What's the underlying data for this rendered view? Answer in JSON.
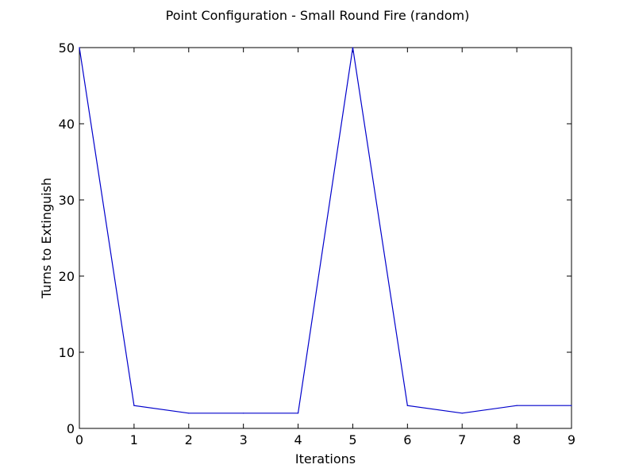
{
  "chart_data": {
    "type": "line",
    "title": "Point Configuration - Small Round Fire (random)",
    "xlabel": "Iterations",
    "ylabel": "Turns to Extinguish",
    "x": [
      0,
      1,
      2,
      3,
      4,
      5,
      6,
      7,
      8,
      9
    ],
    "series": [
      {
        "values": [
          50,
          3,
          2,
          2,
          2,
          50,
          3,
          2,
          3,
          3
        ],
        "color": "#0000cc"
      }
    ],
    "xlim": [
      0,
      9
    ],
    "ylim": [
      0,
      50
    ],
    "xticks": [
      0,
      1,
      2,
      3,
      4,
      5,
      6,
      7,
      8,
      9
    ],
    "yticks": [
      0,
      10,
      20,
      30,
      40,
      50
    ],
    "grid": false,
    "legend": "none"
  }
}
